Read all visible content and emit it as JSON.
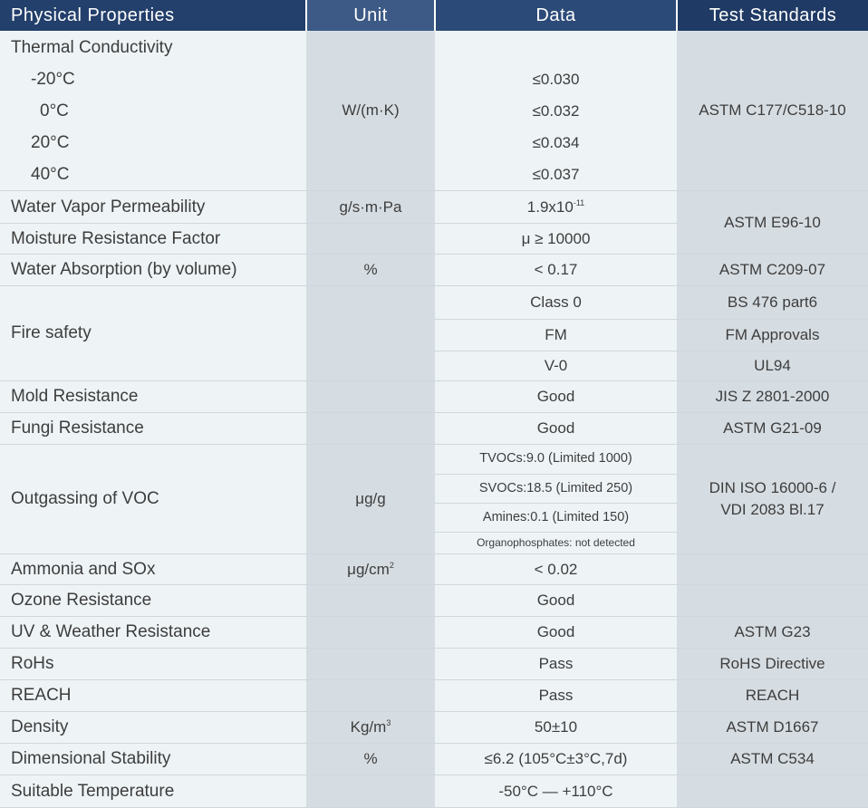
{
  "header": {
    "col_property": "Physical Properties",
    "col_unit": "Unit",
    "col_data": "Data",
    "col_standard": "Test Standards"
  },
  "thermal": {
    "property": "Thermal Conductivity",
    "unit": "W/(m·K)",
    "standard": "ASTM C177/C518-10",
    "rows": [
      {
        "temp": "-20°C",
        "value": "≤0.030"
      },
      {
        "temp": "0°C",
        "value": "≤0.032"
      },
      {
        "temp": "20°C",
        "value": "≤0.034"
      },
      {
        "temp": "40°C",
        "value": "≤0.037"
      }
    ]
  },
  "vapor": {
    "property": "Water Vapor Permeability",
    "unit": "g/s·m·Pa",
    "value_base": "1.9x10",
    "value_exp": "-11",
    "standard": "ASTM E96-10"
  },
  "moisture": {
    "property": "Moisture Resistance Factor",
    "value": "μ ≥ 10000"
  },
  "absorption": {
    "property": "Water Absorption (by volume)",
    "unit": "%",
    "value": "< 0.17",
    "standard": "ASTM C209-07"
  },
  "fire": {
    "property": "Fire safety",
    "rows": [
      {
        "value": "Class 0",
        "standard": "BS 476 part6"
      },
      {
        "value": "FM",
        "standard": "FM Approvals"
      },
      {
        "value": "V-0",
        "standard": "UL94"
      }
    ]
  },
  "mold": {
    "property": "Mold Resistance",
    "value": "Good",
    "standard": "JIS Z 2801-2000"
  },
  "fungi": {
    "property": "Fungi Resistance",
    "value": "Good",
    "standard": "ASTM G21-09"
  },
  "voc": {
    "property": "Outgassing of VOC",
    "unit": "μg/g",
    "standard_line1": "DIN ISO 16000-6 /",
    "standard_line2": "VDI 2083 Bl.17",
    "rows": [
      "TVOCs:9.0 (Limited 1000)",
      "SVOCs:18.5 (Limited 250)",
      "Amines:0.1 (Limited 150)",
      "Organophosphates: not detected"
    ]
  },
  "ammonia": {
    "property": "Ammonia and SOx",
    "unit_base": "μg/cm",
    "unit_exp": "2",
    "value": "< 0.02"
  },
  "ozone": {
    "property": "Ozone Resistance",
    "value": "Good"
  },
  "uv": {
    "property": "UV & Weather Resistance",
    "value": "Good",
    "standard": "ASTM G23"
  },
  "rohs": {
    "property": "RoHs",
    "value": "Pass",
    "standard": "RoHS Directive"
  },
  "reach": {
    "property": "REACH",
    "value": "Pass",
    "standard": "REACH"
  },
  "density": {
    "property": "Density",
    "unit_base": "Kg/m",
    "unit_exp": "3",
    "value": "50±10",
    "standard": "ASTM D1667"
  },
  "dimensional": {
    "property": "Dimensional Stability",
    "unit": "%",
    "value": "≤6.2 (105°C±3°C,7d)",
    "standard": "ASTM C534"
  },
  "temperature": {
    "property": "Suitable Temperature",
    "value": "-50°C — +110°C"
  }
}
